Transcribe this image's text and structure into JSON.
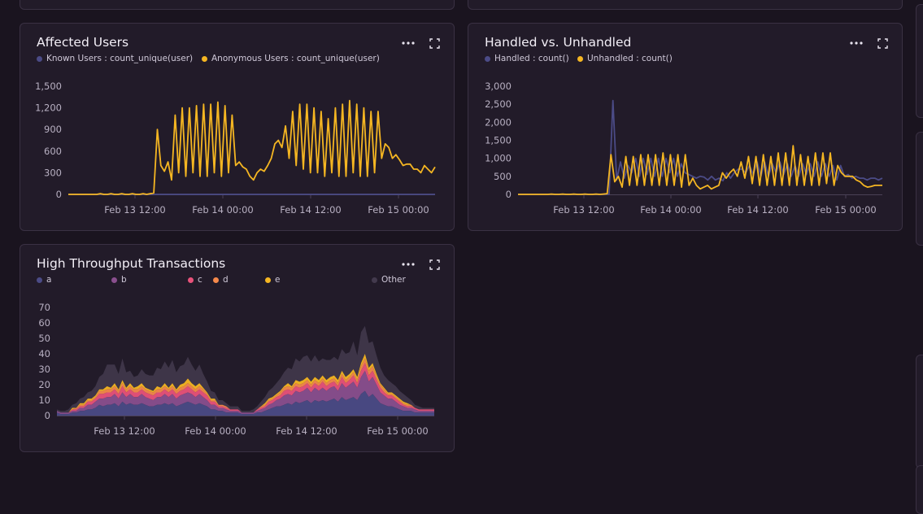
{
  "colors": {
    "known": "#4b4b86",
    "anonymous": "#f5b622",
    "a": "#4b4b86",
    "b": "#8a4f8e",
    "c": "#e9527a",
    "d": "#f6894b",
    "e": "#f5b622",
    "other": "#433a4d"
  },
  "panels": {
    "affected": {
      "title": "Affected Users"
    },
    "handled": {
      "title": "Handled vs. Unhandled"
    },
    "throughput": {
      "title": "High Throughput Transactions"
    }
  },
  "chart_data": [
    {
      "type": "line",
      "title": "Affected Users",
      "legend": [
        "Known Users : count_unique(user)",
        "Anonymous Users : count_unique(user)"
      ],
      "ylim": [
        0,
        1500
      ],
      "yticks": [
        "1,500",
        "1,200",
        "900",
        "600",
        "300",
        "0"
      ],
      "xticks": [
        "Feb 13 12:00",
        "Feb 14 00:00",
        "Feb 14 12:00",
        "Feb 15 00:00"
      ],
      "series": [
        {
          "name": "Known Users : count_unique(user)",
          "color_key": "known",
          "values": [
            0,
            0,
            0,
            0,
            0,
            0,
            0,
            0,
            0,
            0,
            0,
            0,
            0,
            0,
            0,
            0,
            0,
            0,
            0,
            0,
            0,
            0,
            0,
            0,
            0,
            0,
            0,
            0,
            0,
            0,
            0,
            0,
            0,
            0,
            0,
            0,
            0,
            0,
            0,
            0,
            0,
            0,
            0,
            0,
            0,
            0,
            0,
            0,
            0,
            0,
            0,
            0,
            0,
            0,
            0,
            0,
            0,
            0,
            0,
            0,
            0,
            0,
            0,
            0,
            0,
            0,
            0,
            0,
            0,
            0,
            0,
            0,
            0,
            0,
            0,
            0,
            0,
            0,
            0,
            0,
            0,
            0,
            0,
            0,
            0,
            0,
            0,
            0,
            0,
            0,
            0,
            0,
            0,
            0,
            0,
            0,
            0,
            0,
            0,
            0,
            0,
            0,
            0,
            0,
            0,
            0,
            0,
            0,
            0,
            0,
            0
          ]
        },
        {
          "name": "Anonymous Users : count_unique(user)",
          "color_key": "anonymous",
          "values": [
            0,
            0,
            0,
            0,
            0,
            0,
            0,
            0,
            0,
            10,
            0,
            0,
            10,
            0,
            0,
            10,
            0,
            0,
            10,
            0,
            0,
            10,
            0,
            10,
            20,
            900,
            400,
            320,
            450,
            200,
            1100,
            300,
            1200,
            250,
            1200,
            300,
            1230,
            250,
            1250,
            250,
            1250,
            300,
            1280,
            250,
            1230,
            300,
            1100,
            400,
            450,
            380,
            350,
            250,
            200,
            300,
            350,
            320,
            400,
            500,
            700,
            750,
            650,
            950,
            500,
            1150,
            400,
            1250,
            350,
            1250,
            300,
            1200,
            300,
            1150,
            250,
            1050,
            300,
            1200,
            250,
            1250,
            250,
            1300,
            300,
            1250,
            250,
            1200,
            250,
            1150,
            300,
            1150,
            500,
            700,
            650,
            500,
            550,
            480,
            400,
            420,
            420,
            350,
            350,
            300,
            400,
            350,
            300,
            380
          ]
        }
      ]
    },
    {
      "type": "line",
      "title": "Handled vs. Unhandled",
      "legend": [
        "Handled : count()",
        "Unhandled : count()"
      ],
      "ylim": [
        0,
        3000
      ],
      "yticks": [
        "3,000",
        "2,500",
        "2,000",
        "1,500",
        "1,000",
        "500",
        "0"
      ],
      "xticks": [
        "Feb 13 12:00",
        "Feb 14 00:00",
        "Feb 14 12:00",
        "Feb 15 00:00"
      ],
      "series": [
        {
          "name": "Handled : count()",
          "color_key": "known",
          "values": [
            0,
            0,
            0,
            0,
            0,
            0,
            0,
            0,
            0,
            0,
            0,
            0,
            0,
            0,
            0,
            0,
            0,
            0,
            0,
            0,
            0,
            0,
            0,
            0,
            0,
            2600,
            400,
            900,
            450,
            800,
            600,
            1000,
            500,
            1000,
            550,
            1000,
            500,
            1000,
            500,
            1000,
            600,
            1000,
            500,
            850,
            600,
            550,
            500,
            450,
            500,
            480,
            400,
            500,
            400,
            450,
            380,
            600,
            450,
            600,
            700,
            700,
            600,
            800,
            550,
            900,
            500,
            900,
            500,
            850,
            600,
            900,
            550,
            850,
            500,
            800,
            500,
            850,
            550,
            850,
            500,
            900,
            500,
            850,
            500,
            800,
            400,
            800,
            500,
            550,
            450,
            500,
            450,
            450,
            400,
            450,
            450,
            400,
            450
          ]
        },
        {
          "name": "Unhandled : count()",
          "color_key": "anonymous",
          "values": [
            0,
            0,
            0,
            0,
            0,
            0,
            0,
            0,
            0,
            10,
            0,
            0,
            10,
            0,
            0,
            10,
            0,
            0,
            10,
            0,
            0,
            10,
            0,
            10,
            20,
            1100,
            350,
            500,
            200,
            1050,
            250,
            1050,
            250,
            1100,
            250,
            1100,
            250,
            1100,
            250,
            1150,
            250,
            1100,
            250,
            1100,
            200,
            1100,
            250,
            450,
            250,
            150,
            200,
            250,
            150,
            200,
            250,
            600,
            450,
            600,
            700,
            500,
            900,
            450,
            1050,
            300,
            1050,
            250,
            1100,
            250,
            1050,
            250,
            1150,
            250,
            1150,
            250,
            1350,
            250,
            1100,
            250,
            1050,
            250,
            1150,
            250,
            1150,
            300,
            1150,
            250,
            800,
            600,
            500,
            500,
            500,
            400,
            350,
            250,
            200,
            220,
            250,
            250,
            250
          ]
        }
      ]
    },
    {
      "type": "area",
      "title": "High Throughput Transactions",
      "stacked": true,
      "legend": [
        "a",
        "b",
        "c",
        "d",
        "e",
        "Other"
      ],
      "ylim": [
        0,
        70
      ],
      "yticks": [
        "70",
        "60",
        "50",
        "40",
        "30",
        "20",
        "10",
        "0"
      ],
      "xticks": [
        "Feb 13 12:00",
        "Feb 14 00:00",
        "Feb 14 12:00",
        "Feb 15 00:00"
      ],
      "series": [
        {
          "name": "a",
          "color_key": "a",
          "values": [
            2,
            1,
            1,
            1,
            2,
            2,
            3,
            3,
            4,
            4,
            5,
            7,
            6,
            7,
            7,
            8,
            6,
            9,
            7,
            8,
            7,
            7,
            8,
            7,
            6,
            6,
            7,
            7,
            8,
            7,
            8,
            6,
            7,
            8,
            9,
            8,
            7,
            8,
            7,
            6,
            4,
            4,
            3,
            3,
            2,
            2,
            2,
            2,
            1,
            1,
            1,
            1,
            2,
            2,
            3,
            4,
            5,
            6,
            6,
            7,
            8,
            7,
            9,
            8,
            9,
            10,
            8,
            10,
            9,
            10,
            9,
            10,
            11,
            9,
            12,
            10,
            11,
            12,
            10,
            14,
            16,
            12,
            14,
            11,
            8,
            7,
            6,
            6,
            5,
            4,
            3,
            3,
            3,
            2,
            2,
            2,
            2,
            2,
            2
          ]
        },
        {
          "name": "b",
          "color_key": "b",
          "values": [
            1,
            1,
            1,
            1,
            1,
            1,
            2,
            2,
            3,
            3,
            4,
            4,
            5,
            5,
            5,
            6,
            5,
            6,
            5,
            6,
            5,
            5,
            6,
            5,
            5,
            4,
            5,
            5,
            6,
            5,
            6,
            5,
            6,
            6,
            6,
            6,
            5,
            6,
            5,
            4,
            3,
            3,
            2,
            2,
            2,
            1,
            1,
            1,
            1,
            1,
            1,
            1,
            1,
            2,
            2,
            3,
            3,
            4,
            5,
            6,
            6,
            6,
            7,
            7,
            7,
            8,
            7,
            8,
            7,
            8,
            7,
            8,
            8,
            7,
            9,
            8,
            9,
            10,
            8,
            11,
            13,
            10,
            11,
            9,
            7,
            6,
            5,
            5,
            4,
            3,
            3,
            2,
            2,
            2,
            1,
            1,
            1,
            1,
            1
          ]
        },
        {
          "name": "c",
          "color_key": "c",
          "values": [
            0,
            0,
            0,
            0,
            1,
            1,
            1,
            1,
            2,
            2,
            2,
            3,
            3,
            3,
            3,
            3,
            3,
            4,
            3,
            3,
            3,
            3,
            3,
            3,
            3,
            3,
            3,
            3,
            3,
            3,
            3,
            3,
            3,
            3,
            4,
            3,
            3,
            3,
            3,
            3,
            2,
            2,
            1,
            1,
            1,
            1,
            1,
            1,
            0,
            0,
            0,
            0,
            1,
            1,
            1,
            2,
            2,
            2,
            2,
            3,
            3,
            3,
            3,
            3,
            3,
            3,
            3,
            3,
            3,
            4,
            3,
            3,
            3,
            3,
            4,
            3,
            3,
            4,
            3,
            4,
            5,
            4,
            4,
            3,
            3,
            2,
            2,
            2,
            2,
            2,
            1,
            1,
            1,
            1,
            1,
            1,
            1,
            1,
            1
          ]
        },
        {
          "name": "d",
          "color_key": "d",
          "values": [
            0,
            0,
            0,
            0,
            0,
            1,
            1,
            1,
            1,
            1,
            1,
            2,
            2,
            2,
            2,
            2,
            2,
            2,
            2,
            2,
            2,
            2,
            2,
            2,
            2,
            2,
            2,
            2,
            2,
            2,
            2,
            2,
            2,
            2,
            2,
            2,
            2,
            2,
            2,
            1,
            1,
            1,
            1,
            1,
            1,
            0,
            0,
            0,
            0,
            0,
            0,
            0,
            0,
            1,
            1,
            1,
            1,
            1,
            2,
            2,
            2,
            2,
            2,
            2,
            2,
            2,
            2,
            2,
            2,
            2,
            2,
            2,
            2,
            2,
            2,
            2,
            2,
            2,
            2,
            3,
            3,
            3,
            3,
            2,
            2,
            2,
            1,
            1,
            1,
            1,
            1,
            1,
            1,
            0,
            0,
            0,
            0,
            0,
            0
          ]
        },
        {
          "name": "e",
          "color_key": "e",
          "values": [
            0,
            0,
            0,
            0,
            1,
            0,
            1,
            1,
            1,
            1,
            1,
            1,
            1,
            2,
            1,
            2,
            1,
            2,
            1,
            2,
            1,
            2,
            2,
            1,
            1,
            1,
            2,
            1,
            2,
            1,
            2,
            1,
            2,
            2,
            3,
            2,
            2,
            2,
            1,
            1,
            1,
            1,
            0,
            0,
            0,
            0,
            0,
            0,
            0,
            0,
            0,
            0,
            0,
            0,
            1,
            1,
            1,
            1,
            1,
            1,
            2,
            1,
            2,
            2,
            2,
            2,
            2,
            2,
            2,
            2,
            2,
            2,
            2,
            2,
            2,
            2,
            2,
            2,
            2,
            2,
            3,
            2,
            2,
            2,
            1,
            1,
            1,
            1,
            1,
            1,
            1,
            1,
            0,
            0,
            0,
            0,
            0,
            0,
            0
          ]
        },
        {
          "name": "Other",
          "color_key": "other",
          "values": [
            1,
            1,
            1,
            2,
            2,
            3,
            3,
            4,
            4,
            5,
            6,
            8,
            10,
            14,
            15,
            12,
            10,
            14,
            10,
            8,
            7,
            7,
            9,
            9,
            9,
            10,
            12,
            12,
            14,
            13,
            15,
            11,
            12,
            12,
            14,
            12,
            10,
            12,
            9,
            7,
            5,
            4,
            3,
            3,
            2,
            2,
            2,
            2,
            1,
            1,
            1,
            2,
            2,
            3,
            4,
            5,
            6,
            7,
            8,
            9,
            10,
            11,
            14,
            13,
            15,
            14,
            13,
            14,
            12,
            11,
            13,
            11,
            12,
            13,
            14,
            15,
            14,
            18,
            14,
            20,
            18,
            16,
            14,
            12,
            10,
            8,
            8,
            6,
            6,
            5,
            5,
            4,
            3,
            2,
            2,
            1,
            1,
            1,
            1
          ]
        }
      ]
    }
  ]
}
